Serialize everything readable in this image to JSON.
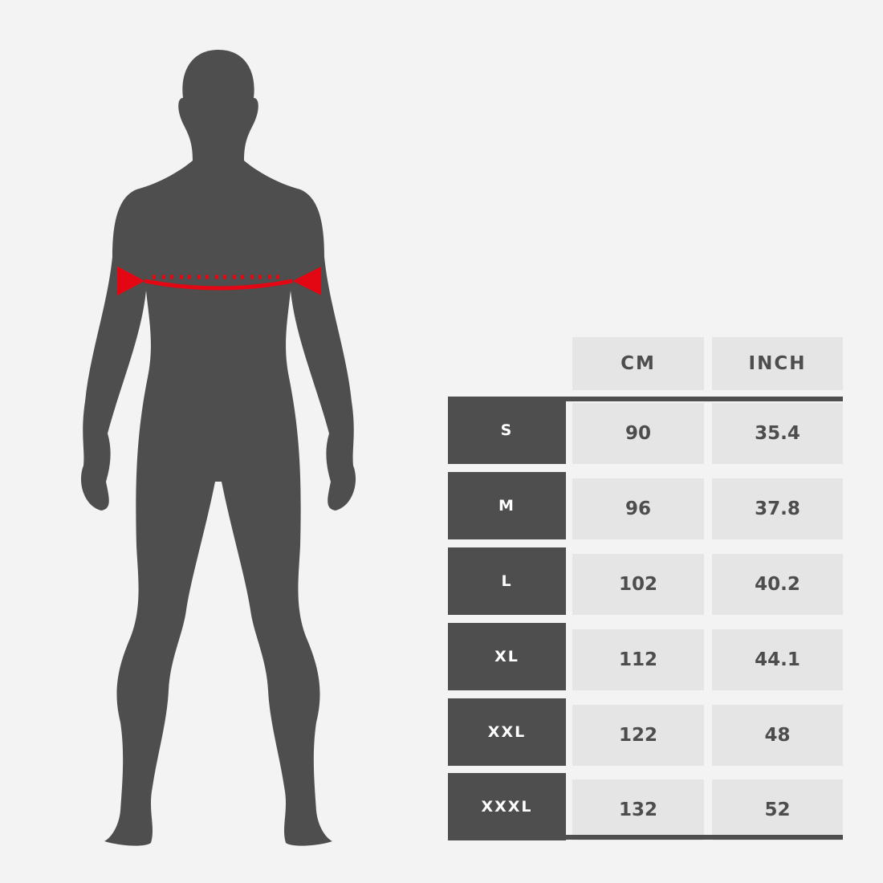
{
  "colors": {
    "silhouette": "#4e4e4e",
    "measure": "#e30613",
    "cell": "#e5e5e5",
    "background": "#f3f3f3"
  },
  "figure": {
    "measurement": "chest"
  },
  "table": {
    "headers": [
      "CM",
      "INCH"
    ],
    "rows": [
      {
        "size": "S",
        "cm": "90",
        "inch": "35.4"
      },
      {
        "size": "M",
        "cm": "96",
        "inch": "37.8"
      },
      {
        "size": "L",
        "cm": "102",
        "inch": "40.2"
      },
      {
        "size": "XL",
        "cm": "112",
        "inch": "44.1"
      },
      {
        "size": "XXL",
        "cm": "122",
        "inch": "48"
      },
      {
        "size": "XXXL",
        "cm": "132",
        "inch": "52"
      }
    ]
  }
}
